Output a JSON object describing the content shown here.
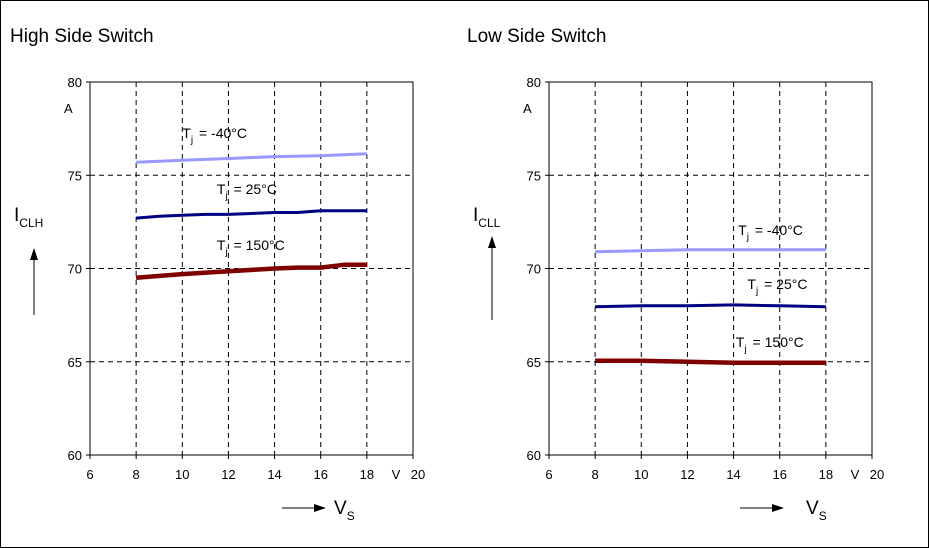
{
  "chart_data": [
    {
      "type": "line",
      "title": "High Side Switch",
      "xlabel": "V",
      "xlabel_sub": "S",
      "ylabel": "I",
      "ylabel_sub": "CLH",
      "x_unit": "V",
      "y_unit": "A",
      "xlim": [
        6,
        20
      ],
      "ylim": [
        60,
        80
      ],
      "xticks": [
        6,
        8,
        10,
        12,
        14,
        16,
        18,
        20
      ],
      "yticks": [
        60,
        65,
        70,
        75,
        80
      ],
      "grid": true,
      "series": [
        {
          "name": "-40°C",
          "color": "#9999ff",
          "width": 3,
          "x": [
            8,
            10,
            12,
            14,
            16,
            18
          ],
          "y": [
            75.7,
            75.8,
            75.9,
            76.0,
            76.05,
            76.15
          ]
        },
        {
          "name": "25°C",
          "color": "#000080",
          "width": 3,
          "x": [
            8,
            9,
            10,
            11,
            12,
            13,
            14,
            15,
            16,
            17,
            18
          ],
          "y": [
            72.7,
            72.8,
            72.85,
            72.9,
            72.9,
            72.95,
            73.0,
            73.0,
            73.1,
            73.1,
            73.1
          ]
        },
        {
          "name": "150°C",
          "color": "#800000",
          "width": 4.5,
          "x": [
            8,
            10,
            12,
            14,
            15,
            16,
            17,
            18
          ],
          "y": [
            69.5,
            69.7,
            69.85,
            70.0,
            70.05,
            70.05,
            70.2,
            70.2
          ]
        }
      ],
      "labels": [
        {
          "sym": "T",
          "sub": "j",
          "text": "= -40°C",
          "x": 10.0,
          "y": 77.0
        },
        {
          "sym": "T",
          "sub": "j",
          "text": "= 25°C",
          "x": 11.5,
          "y": 74.0
        },
        {
          "sym": "T",
          "sub": "j",
          "text": "= 150°C",
          "x": 11.5,
          "y": 71.0
        }
      ]
    },
    {
      "type": "line",
      "title": "Low Side  Switch",
      "xlabel": "V",
      "xlabel_sub": "S",
      "ylabel": "I",
      "ylabel_sub": "CLL",
      "x_unit": "V",
      "y_unit": "A",
      "xlim": [
        6,
        20
      ],
      "ylim": [
        60,
        80
      ],
      "xticks": [
        6,
        8,
        10,
        12,
        14,
        16,
        18,
        20
      ],
      "yticks": [
        60,
        65,
        70,
        75,
        80
      ],
      "grid": true,
      "series": [
        {
          "name": "-40°C",
          "color": "#9999ff",
          "width": 3,
          "x": [
            8,
            10,
            12,
            14,
            16,
            18
          ],
          "y": [
            70.9,
            70.95,
            71.0,
            71.0,
            71.0,
            71.0
          ]
        },
        {
          "name": "25°C",
          "color": "#000080",
          "width": 3,
          "x": [
            8,
            10,
            12,
            14,
            16,
            18
          ],
          "y": [
            67.95,
            68.0,
            68.0,
            68.05,
            68.0,
            67.95
          ]
        },
        {
          "name": "150°C",
          "color": "#800000",
          "width": 4.5,
          "x": [
            8,
            10,
            12,
            14,
            16,
            18
          ],
          "y": [
            65.05,
            65.05,
            65.0,
            64.95,
            64.95,
            64.95
          ]
        }
      ],
      "labels": [
        {
          "sym": "T",
          "sub": "j",
          "text": "= -40°C",
          "x": 14.2,
          "y": 71.8
        },
        {
          "sym": "T",
          "sub": "j",
          "text": "= 25°C",
          "x": 14.6,
          "y": 68.9
        },
        {
          "sym": "T",
          "sub": "j",
          "text": "= 150°C",
          "x": 14.1,
          "y": 65.8
        }
      ]
    }
  ]
}
